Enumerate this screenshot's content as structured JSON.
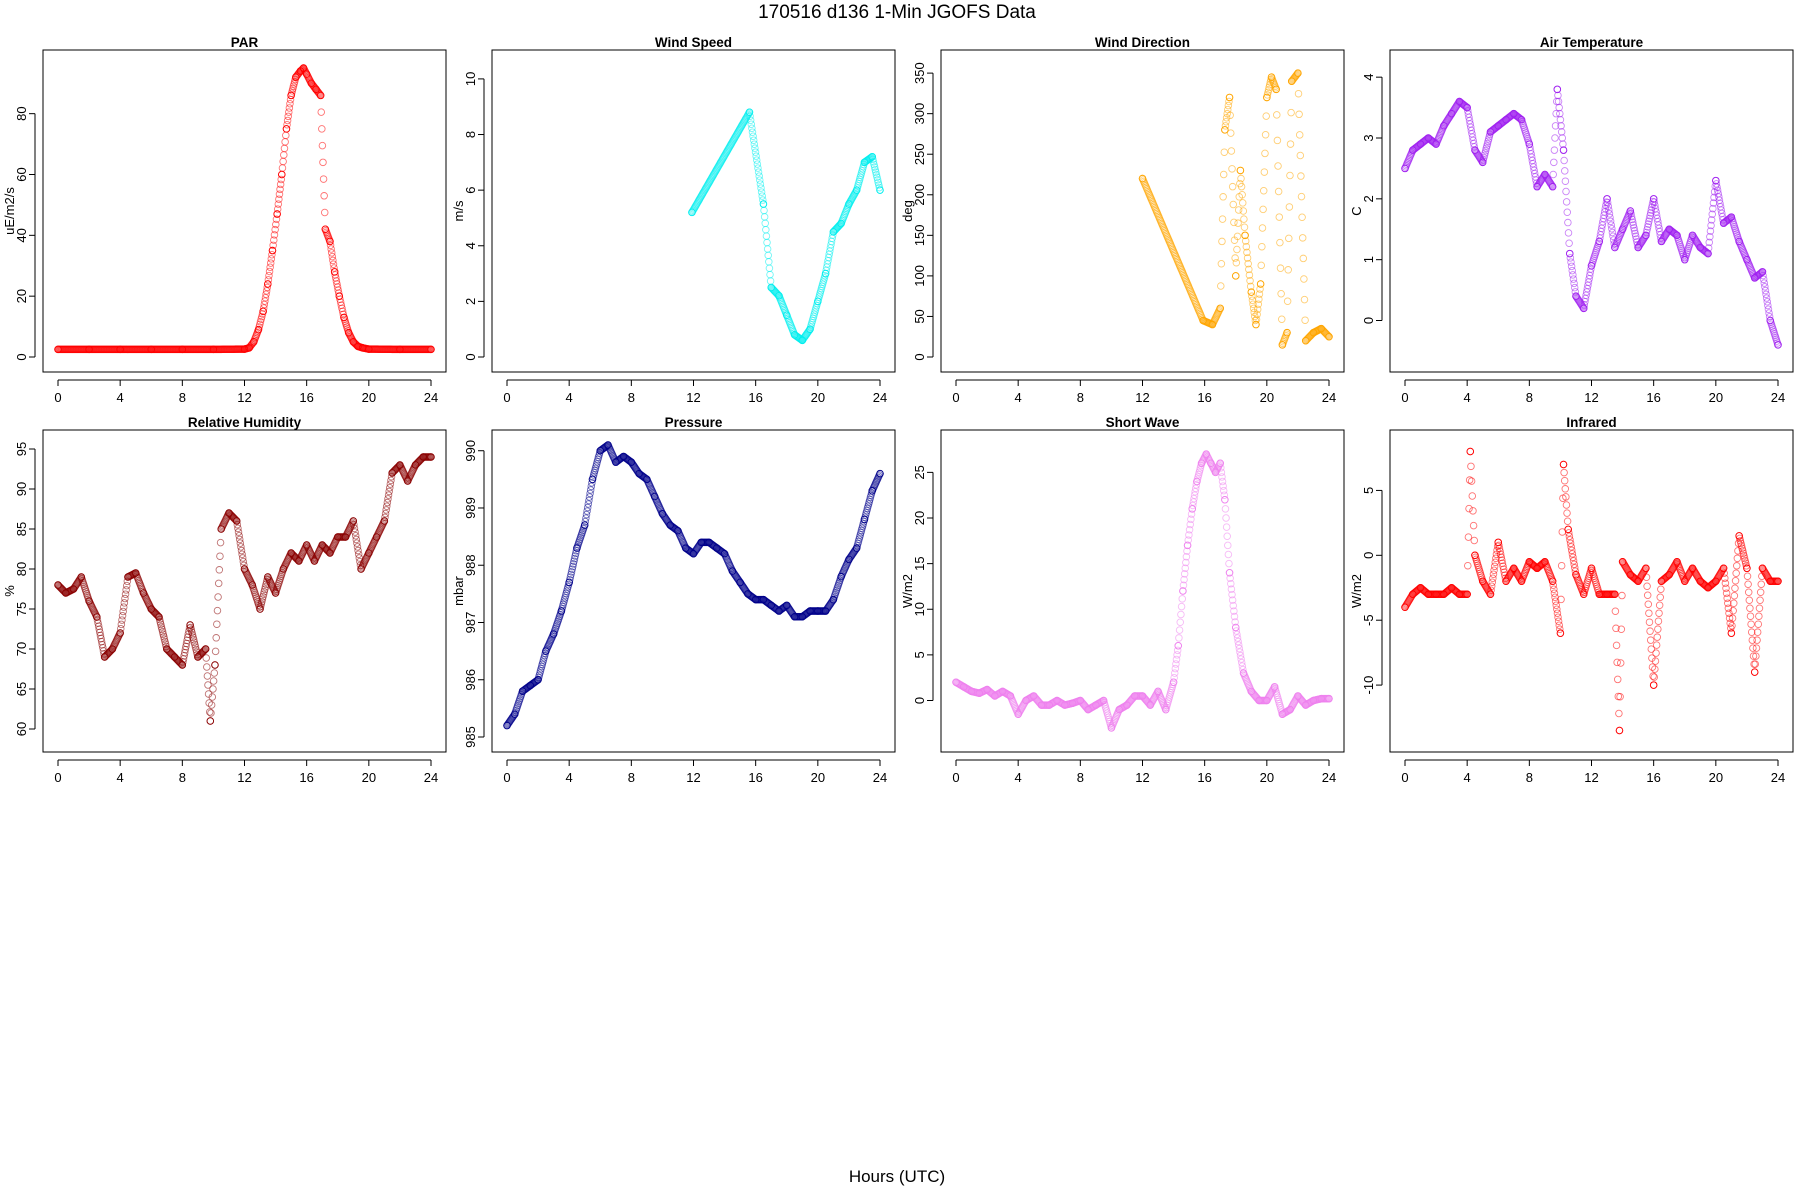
{
  "figure": {
    "title": "170516   d136   1-Min  JGOFS Data",
    "xlabel": "Hours (UTC)"
  },
  "chart_data": [
    {
      "type": "scatter",
      "title": "PAR",
      "ylabel": "uE/m2/s",
      "color": "#ff0000",
      "xlim": [
        0,
        24
      ],
      "ylim": [
        0,
        96
      ],
      "xticks": [
        0,
        4,
        8,
        12,
        16,
        20,
        24
      ],
      "yticks": [
        0,
        20,
        40,
        60,
        80
      ],
      "x": [
        0,
        2,
        4,
        6,
        8,
        10,
        12,
        12.3,
        12.6,
        12.9,
        13.2,
        13.5,
        13.8,
        14.1,
        14.4,
        14.7,
        15.0,
        15.3,
        15.6,
        15.8,
        16.0,
        16.3,
        16.6,
        16.9,
        17.2,
        17.5,
        17.8,
        18.1,
        18.4,
        18.7,
        19.0,
        19.3,
        19.6,
        20,
        22,
        24
      ],
      "y": [
        2.5,
        2.5,
        2.5,
        2.5,
        2.5,
        2.5,
        2.6,
        3,
        5,
        9,
        15,
        24,
        35,
        47,
        60,
        75,
        86,
        92,
        94,
        95,
        93,
        90,
        88,
        86,
        42,
        38,
        28,
        20,
        13,
        8,
        5,
        3.5,
        3,
        2.6,
        2.5,
        2.5
      ]
    },
    {
      "type": "scatter",
      "title": "Wind Speed",
      "ylabel": "m/s",
      "color": "#00eeee",
      "xlim": [
        0,
        24
      ],
      "ylim": [
        0,
        10.5
      ],
      "xticks": [
        0,
        4,
        8,
        12,
        16,
        20,
        24
      ],
      "yticks": [
        0,
        2,
        4,
        6,
        8,
        10
      ],
      "x": [
        11.9,
        15.6,
        16.5,
        17.0,
        17.5,
        18.0,
        18.5,
        19.0,
        19.5,
        20.0,
        20.5,
        21.0,
        21.5,
        22.0,
        22.5,
        23.0,
        23.5,
        24.0
      ],
      "y": [
        5.2,
        8.8,
        5.5,
        2.5,
        2.2,
        1.5,
        0.8,
        0.6,
        1.0,
        2.0,
        3.0,
        4.5,
        4.8,
        5.5,
        6.0,
        7.0,
        7.2,
        6.0
      ]
    },
    {
      "type": "scatter",
      "title": "Wind Direction",
      "ylabel": "deg",
      "color": "#ffa500",
      "xlim": [
        0,
        24
      ],
      "ylim": [
        0,
        360
      ],
      "xticks": [
        0,
        4,
        8,
        12,
        16,
        20,
        24
      ],
      "yticks": [
        0,
        50,
        100,
        150,
        200,
        250,
        300,
        350
      ],
      "x": [
        12.0,
        15.9,
        16.5,
        17.0,
        17.3,
        17.6,
        18.0,
        18.3,
        18.6,
        19.0,
        19.3,
        19.6,
        20.0,
        20.3,
        20.6,
        21.0,
        21.3,
        21.6,
        22.0,
        22.5,
        23.0,
        23.5,
        24.0
      ],
      "y": [
        220,
        45,
        40,
        60,
        280,
        320,
        100,
        230,
        150,
        80,
        40,
        90,
        320,
        345,
        330,
        15,
        30,
        340,
        350,
        20,
        30,
        35,
        25
      ]
    },
    {
      "type": "scatter",
      "title": "Air Temperature",
      "ylabel": "C",
      "color": "#a020f0",
      "xlim": [
        0,
        24
      ],
      "ylim": [
        -0.6,
        4.2
      ],
      "xticks": [
        0,
        4,
        8,
        12,
        16,
        20,
        24
      ],
      "yticks": [
        0,
        1,
        2,
        3,
        4
      ],
      "x": [
        0,
        0.5,
        1,
        1.5,
        2,
        2.5,
        3,
        3.5,
        4,
        4.5,
        5,
        5.5,
        6,
        6.5,
        7,
        7.5,
        8,
        8.5,
        9,
        9.5,
        9.8,
        10.2,
        10.6,
        11,
        11.5,
        12,
        12.5,
        13,
        13.5,
        14,
        14.5,
        15,
        15.5,
        16,
        16.5,
        17,
        17.5,
        18,
        18.5,
        19,
        19.5,
        20,
        20.5,
        21,
        21.5,
        22,
        22.5,
        23,
        23.5,
        24
      ],
      "y": [
        2.5,
        2.8,
        2.9,
        3.0,
        2.9,
        3.2,
        3.4,
        3.6,
        3.5,
        2.8,
        2.6,
        3.1,
        3.2,
        3.3,
        3.4,
        3.3,
        2.9,
        2.2,
        2.4,
        2.2,
        3.8,
        2.8,
        1.1,
        0.4,
        0.2,
        0.9,
        1.3,
        2.0,
        1.2,
        1.5,
        1.8,
        1.2,
        1.4,
        2.0,
        1.3,
        1.5,
        1.4,
        1.0,
        1.4,
        1.2,
        1.1,
        2.3,
        1.6,
        1.7,
        1.3,
        1.0,
        0.7,
        0.8,
        0.0,
        -0.4
      ]
    },
    {
      "type": "scatter",
      "title": "Relative Humidity",
      "ylabel": "%",
      "color": "#8b0000",
      "xlim": [
        0,
        24
      ],
      "ylim": [
        59,
        95.5
      ],
      "xticks": [
        0,
        4,
        8,
        12,
        16,
        20,
        24
      ],
      "yticks": [
        60,
        65,
        70,
        75,
        80,
        85,
        90,
        95
      ],
      "x": [
        0,
        0.5,
        1,
        1.5,
        2,
        2.5,
        3,
        3.5,
        4,
        4.5,
        5,
        5.5,
        6,
        6.5,
        7,
        7.5,
        8,
        8.5,
        9,
        9.5,
        9.8,
        10.1,
        10.5,
        11,
        11.5,
        12,
        12.5,
        13,
        13.5,
        14,
        14.5,
        15,
        15.5,
        16,
        16.5,
        17,
        17.5,
        18,
        18.5,
        19,
        19.5,
        20,
        20.5,
        21,
        21.5,
        22,
        22.5,
        23,
        23.5,
        24
      ],
      "y": [
        78,
        77,
        77.5,
        79,
        76,
        74,
        69,
        70,
        72,
        79,
        79.5,
        77,
        75,
        74,
        70,
        69,
        68,
        73,
        69,
        70,
        61,
        68,
        85,
        87,
        86,
        80,
        78,
        75,
        79,
        77,
        80,
        82,
        81,
        83,
        81,
        83,
        82,
        84,
        84,
        86,
        80,
        82,
        84,
        86,
        92,
        93,
        91,
        93,
        94,
        94
      ]
    },
    {
      "type": "scatter",
      "title": "Pressure",
      "ylabel": "mbar",
      "color": "#00008b",
      "xlim": [
        0,
        24
      ],
      "ylim": [
        985,
        990.1
      ],
      "xticks": [
        0,
        4,
        8,
        12,
        16,
        20,
        24
      ],
      "yticks": [
        985,
        986,
        987,
        988,
        989,
        990
      ],
      "x": [
        0,
        0.5,
        1,
        1.5,
        2,
        2.5,
        3,
        3.5,
        4,
        4.5,
        5,
        5.5,
        6,
        6.5,
        7,
        7.5,
        8,
        8.5,
        9,
        9.5,
        10,
        10.5,
        11,
        11.5,
        12,
        12.5,
        13,
        13.5,
        14,
        14.5,
        15,
        15.5,
        16,
        16.5,
        17,
        17.5,
        18,
        18.5,
        19,
        19.5,
        20,
        20.5,
        21,
        21.5,
        22,
        22.5,
        23,
        23.5,
        24
      ],
      "y": [
        985.2,
        985.4,
        985.8,
        985.9,
        986.0,
        986.5,
        986.8,
        987.2,
        987.7,
        988.3,
        988.7,
        989.5,
        990.0,
        990.1,
        989.8,
        989.9,
        989.8,
        989.6,
        989.5,
        989.2,
        988.9,
        988.7,
        988.6,
        988.3,
        988.2,
        988.4,
        988.4,
        988.3,
        988.2,
        987.9,
        987.7,
        987.5,
        987.4,
        987.4,
        987.3,
        987.2,
        987.3,
        987.1,
        987.1,
        987.2,
        987.2,
        987.2,
        987.4,
        987.8,
        988.1,
        988.3,
        988.8,
        989.3,
        989.6
      ]
    },
    {
      "type": "scatter",
      "title": "Short Wave",
      "ylabel": "W/m2",
      "color": "#ee82ee",
      "xlim": [
        0,
        24
      ],
      "ylim": [
        -4,
        28
      ],
      "xticks": [
        0,
        4,
        8,
        12,
        16,
        20,
        24
      ],
      "yticks": [
        0,
        5,
        10,
        15,
        20,
        25
      ],
      "x": [
        0,
        0.5,
        1,
        1.5,
        2,
        2.5,
        3,
        3.5,
        4,
        4.5,
        5,
        5.5,
        6,
        6.5,
        7,
        7.5,
        8,
        8.5,
        9,
        9.5,
        10,
        10.5,
        11,
        11.5,
        12,
        12.5,
        13,
        13.5,
        14,
        14.3,
        14.6,
        14.9,
        15.2,
        15.5,
        15.8,
        16.1,
        16.4,
        16.7,
        17.0,
        17.3,
        17.6,
        18.0,
        18.5,
        19,
        19.5,
        20,
        20.5,
        21,
        21.5,
        22,
        22.5,
        23,
        23.5,
        24
      ],
      "y": [
        2,
        1.5,
        1.0,
        0.8,
        1.2,
        0.5,
        1.0,
        0.5,
        -1.5,
        0,
        0.5,
        -0.5,
        -0.5,
        0,
        -0.5,
        -0.3,
        0,
        -1.0,
        -0.5,
        0,
        -3.0,
        -1.0,
        -0.5,
        0.5,
        0.5,
        -0.5,
        1.0,
        -1.0,
        2.0,
        6,
        12,
        17,
        21,
        24,
        26,
        27,
        26,
        25,
        26,
        22,
        14,
        8,
        3,
        1,
        0,
        0,
        1.5,
        -1.5,
        -1.0,
        0.5,
        -0.5,
        0,
        0.2,
        0.2
      ]
    },
    {
      "type": "scatter",
      "title": "Infrared",
      "ylabel": "W/m2",
      "color": "#ff0000",
      "xlim": [
        0,
        24
      ],
      "ylim": [
        -14,
        8.5
      ],
      "xticks": [
        0,
        4,
        8,
        12,
        16,
        20,
        24
      ],
      "yticks": [
        -10,
        -5,
        0,
        5
      ],
      "x": [
        0,
        0.5,
        1,
        1.5,
        2,
        2.5,
        3,
        3.5,
        4,
        4.2,
        4.5,
        5,
        5.5,
        6,
        6.5,
        7,
        7.5,
        8,
        8.5,
        9,
        9.5,
        10,
        10.2,
        10.5,
        11,
        11.5,
        12,
        12.5,
        13,
        13.5,
        13.8,
        14,
        14.5,
        15,
        15.5,
        16,
        16.5,
        17,
        17.5,
        18,
        18.5,
        19,
        19.5,
        20,
        20.5,
        21,
        21.5,
        22,
        22.5,
        23,
        23.5,
        24
      ],
      "y": [
        -4,
        -3,
        -2.5,
        -3,
        -3,
        -3,
        -2.5,
        -3,
        -3,
        8,
        0,
        -2,
        -3,
        1,
        -2,
        -1,
        -2,
        -0.5,
        -1,
        -0.5,
        -2,
        -6,
        7,
        2,
        -1.5,
        -3,
        -1,
        -3,
        -3,
        -3,
        -13.5,
        -0.5,
        -1.5,
        -2,
        -1,
        -10,
        -2,
        -1.5,
        -0.5,
        -2,
        -1,
        -2,
        -2.5,
        -2,
        -1,
        -6,
        1.5,
        -1,
        -9,
        -1,
        -2,
        -2
      ]
    }
  ]
}
